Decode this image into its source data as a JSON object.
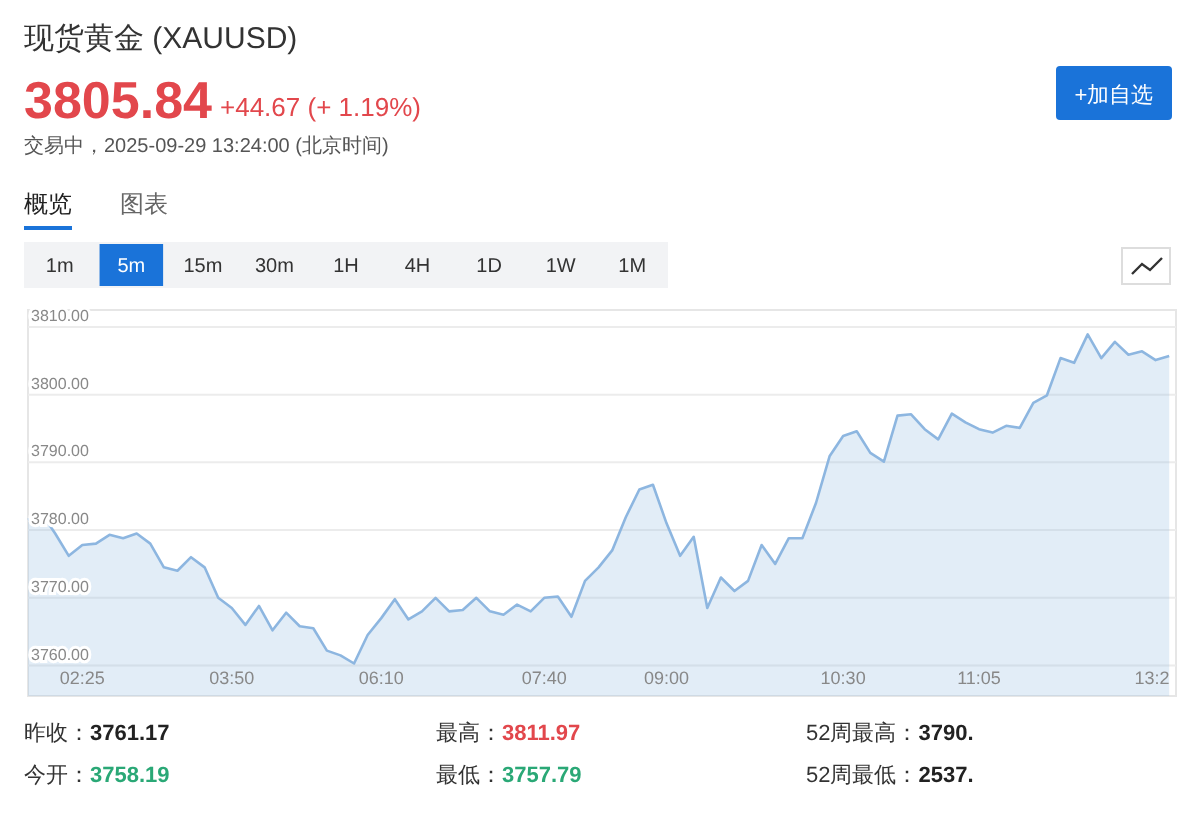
{
  "chart_data": {
    "type": "area",
    "title": "现货黄金 (XAUUSD)",
    "color": "#8db6e0",
    "grid": "y",
    "annotations": [
      "3805.84",
      "+44.67 (+ 1.19%)",
      "交易中，2025-09-29 13:24:00 (北京时间)",
      "+加自选",
      "概览",
      "图表",
      "1m",
      "5m",
      "15m",
      "30m",
      "1H",
      "4H",
      "1D",
      "1W",
      "1M",
      "昨收：3761.17",
      "最高：3811.97",
      "52周最高：3790.",
      "今开：3758.19",
      "最低：3757.79",
      "52周最低：2537."
    ],
    "categories": [
      null,
      null,
      null,
      null,
      "02:25",
      null,
      null,
      null,
      null,
      null,
      null,
      null,
      null,
      null,
      null,
      "03:50",
      null,
      null,
      null,
      null,
      null,
      null,
      null,
      null,
      null,
      null,
      "06:10",
      null,
      null,
      null,
      null,
      null,
      null,
      null,
      null,
      null,
      null,
      null,
      "07:40",
      null,
      null,
      null,
      null,
      null,
      null,
      null,
      null,
      "09:00",
      null,
      null,
      null,
      null,
      null,
      null,
      null,
      null,
      null,
      null,
      null,
      null,
      "10:30",
      null,
      null,
      null,
      null,
      null,
      null,
      null,
      null,
      null,
      "11:05",
      null,
      null,
      null,
      null,
      null,
      null,
      null,
      null,
      null,
      null,
      null,
      null,
      "13:2",
      null
    ],
    "values": [
      3781.5,
      3782.5,
      3779.5,
      3776.2,
      3777.8,
      3778.0,
      3779.3,
      3778.8,
      3779.5,
      3778.0,
      3774.5,
      3774.0,
      3776.0,
      3774.5,
      3770.0,
      3768.5,
      3766.0,
      3768.8,
      3765.2,
      3767.8,
      3765.8,
      3765.5,
      3762.2,
      3761.5,
      3760.3,
      3764.5,
      3767.0,
      3769.8,
      3766.8,
      3768.0,
      3770.0,
      3768.0,
      3768.2,
      3770.0,
      3768.0,
      3767.5,
      3769.0,
      3768.0,
      3770.0,
      3770.2,
      3767.2,
      3772.5,
      3774.5,
      3777.0,
      3781.9,
      3786.0,
      3786.7,
      3781.0,
      3776.2,
      3779.0,
      3768.5,
      3773.0,
      3771.0,
      3772.5,
      3777.8,
      3775.0,
      3778.8,
      3778.8,
      3784.0,
      3790.9,
      3793.9,
      3794.6,
      3791.4,
      3790.1,
      3796.9,
      3797.1,
      3794.9,
      3793.4,
      3797.2,
      3795.9,
      3794.9,
      3794.4,
      3795.4,
      3795.1,
      3798.8,
      3799.9,
      3805.4,
      3804.7,
      3808.9,
      3805.4,
      3807.8,
      3805.9,
      3806.4,
      3805.1,
      3805.7
    ],
    "ylim": [
      3755.5,
      3812.5
    ],
    "yticks": [
      {
        "value": 3760,
        "label": "3760.00"
      },
      {
        "value": 3770,
        "label": "3770.00"
      },
      {
        "value": 3780,
        "label": "3780.00"
      },
      {
        "value": 3790,
        "label": "3790.00"
      },
      {
        "value": 3800,
        "label": "3800.00"
      },
      {
        "value": 3810,
        "label": "3810.00"
      }
    ]
  }
}
